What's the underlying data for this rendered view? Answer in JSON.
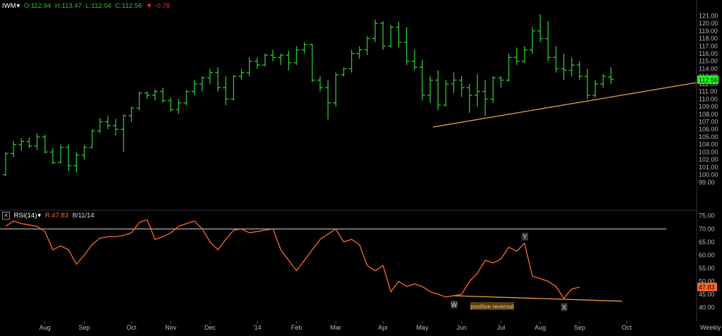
{
  "header": {
    "symbol": "IWM",
    "arrow": "▾",
    "open": "O:112.94",
    "high": "H:113.47",
    "low": "L:112.04",
    "close": "C:112.56",
    "change": "-0.78",
    "change_color": "#ff2a2a"
  },
  "rsi_header": {
    "close_box": "×",
    "label": "RSI(14)",
    "arrow": "▾",
    "value": "R:47.83",
    "date": "8/11/14"
  },
  "colors": {
    "bar": "#2dc52d",
    "rsi": "#ff6a2a",
    "trend": "#e8a040",
    "ref": "#d8d8d8",
    "price_tag": "#22ff22",
    "rsi_tag": "#ff6a2a"
  },
  "chart_data": [
    {
      "type": "ohlc",
      "last_price_tag": "112.56",
      "ylim": [
        98,
        121.5
      ],
      "yticks": [
        "99.00",
        "100.00",
        "101.00",
        "102.00",
        "103.00",
        "104.00",
        "105.00",
        "106.00",
        "107.00",
        "108.00",
        "109.00",
        "110.00",
        "111.00",
        "112.00",
        "113.00",
        "114.00",
        "115.00",
        "116.00",
        "117.00",
        "118.00",
        "119.00",
        "120.00",
        "121.00"
      ],
      "bars": [
        [
          100.0,
          103.0,
          99.8,
          102.8
        ],
        [
          102.8,
          104.5,
          102.3,
          104.0
        ],
        [
          104.0,
          104.8,
          103.2,
          104.4
        ],
        [
          104.4,
          104.9,
          103.5,
          103.8
        ],
        [
          103.8,
          105.5,
          103.3,
          105.0
        ],
        [
          105.0,
          105.3,
          102.8,
          103.0
        ],
        [
          103.0,
          103.5,
          101.4,
          101.6
        ],
        [
          101.6,
          104.0,
          101.5,
          103.6
        ],
        [
          103.6,
          104.0,
          100.5,
          101.2
        ],
        [
          101.2,
          103.0,
          100.3,
          102.6
        ],
        [
          102.6,
          104.0,
          102.0,
          103.6
        ],
        [
          103.6,
          106.0,
          103.5,
          105.8
        ],
        [
          105.8,
          107.5,
          105.5,
          107.0
        ],
        [
          107.0,
          107.8,
          106.0,
          106.5
        ],
        [
          106.5,
          107.4,
          105.2,
          106.0
        ],
        [
          106.0,
          108.0,
          103.0,
          107.8
        ],
        [
          107.8,
          109.0,
          107.0,
          108.8
        ],
        [
          108.8,
          111.0,
          108.5,
          110.8
        ],
        [
          110.8,
          111.0,
          110.0,
          110.5
        ],
        [
          110.5,
          111.3,
          109.8,
          111.0
        ],
        [
          111.0,
          111.5,
          109.5,
          109.8
        ],
        [
          109.8,
          110.2,
          108.3,
          108.6
        ],
        [
          108.6,
          110.0,
          108.0,
          109.5
        ],
        [
          109.5,
          111.2,
          109.2,
          111.0
        ],
        [
          111.0,
          112.5,
          110.5,
          112.0
        ],
        [
          112.0,
          113.0,
          111.0,
          112.8
        ],
        [
          112.8,
          114.0,
          112.0,
          113.5
        ],
        [
          113.5,
          114.2,
          111.0,
          111.5
        ],
        [
          111.5,
          113.0,
          109.2,
          110.0
        ],
        [
          110.0,
          113.2,
          109.8,
          113.0
        ],
        [
          113.0,
          114.0,
          112.5,
          113.5
        ],
        [
          113.5,
          115.5,
          113.0,
          115.0
        ],
        [
          115.0,
          115.5,
          114.0,
          114.5
        ],
        [
          114.5,
          116.0,
          114.3,
          115.8
        ],
        [
          115.8,
          116.5,
          115.0,
          115.5
        ],
        [
          115.5,
          116.0,
          114.5,
          115.8
        ],
        [
          115.8,
          116.4,
          113.8,
          114.8
        ],
        [
          114.8,
          117.0,
          114.5,
          116.5
        ],
        [
          116.5,
          117.5,
          116.0,
          117.2
        ],
        [
          117.2,
          117.3,
          112.2,
          112.5
        ],
        [
          112.5,
          113.0,
          111.0,
          111.5
        ],
        [
          111.5,
          112.5,
          107.3,
          109.5
        ],
        [
          109.5,
          113.5,
          109.0,
          113.2
        ],
        [
          113.2,
          114.2,
          113.0,
          114.0
        ],
        [
          114.0,
          116.5,
          113.5,
          116.0
        ],
        [
          116.0,
          117.0,
          115.3,
          116.5
        ],
        [
          116.5,
          118.3,
          115.8,
          118.0
        ],
        [
          118.0,
          120.5,
          117.5,
          120.0
        ],
        [
          120.0,
          120.3,
          116.5,
          117.0
        ],
        [
          117.0,
          119.8,
          116.8,
          119.5
        ],
        [
          119.5,
          120.2,
          116.8,
          117.5
        ],
        [
          117.5,
          119.5,
          114.5,
          115.0
        ],
        [
          115.0,
          116.5,
          113.8,
          114.2
        ],
        [
          114.2,
          115.2,
          109.8,
          110.5
        ],
        [
          110.5,
          113.0,
          109.5,
          112.5
        ],
        [
          112.5,
          113.8,
          108.5,
          109.2
        ],
        [
          109.2,
          112.5,
          109.0,
          112.0
        ],
        [
          112.0,
          113.5,
          110.8,
          112.5
        ],
        [
          112.5,
          113.0,
          110.3,
          111.5
        ],
        [
          111.5,
          112.0,
          108.2,
          110.5
        ],
        [
          110.5,
          113.3,
          109.0,
          111.0
        ],
        [
          111.0,
          112.5,
          107.8,
          110.0
        ],
        [
          110.0,
          113.0,
          109.5,
          112.8
        ],
        [
          112.8,
          113.0,
          111.5,
          112.5
        ],
        [
          112.5,
          116.0,
          112.3,
          115.5
        ],
        [
          115.5,
          116.8,
          114.5,
          115.0
        ],
        [
          115.0,
          117.0,
          114.8,
          116.5
        ],
        [
          116.5,
          119.5,
          116.0,
          119.0
        ],
        [
          119.0,
          121.2,
          117.5,
          118.0
        ],
        [
          118.0,
          120.3,
          115.0,
          115.5
        ],
        [
          115.5,
          117.0,
          113.5,
          114.0
        ],
        [
          114.0,
          116.0,
          112.5,
          113.8
        ],
        [
          113.8,
          115.5,
          113.0,
          114.5
        ],
        [
          114.5,
          115.0,
          112.5,
          113.0
        ],
        [
          113.0,
          114.0,
          110.0,
          110.5
        ],
        [
          110.5,
          112.5,
          110.2,
          112.0
        ],
        [
          112.0,
          113.3,
          111.5,
          113.0
        ],
        [
          112.9,
          114.2,
          112.0,
          112.6
        ]
      ]
    },
    {
      "type": "line",
      "name": "RSI(14)",
      "ylim": [
        38,
        76
      ],
      "yticks": [
        "40.00",
        "45.00",
        "50.00",
        "55.00",
        "60.00",
        "65.00",
        "70.00",
        "75.00"
      ],
      "reference_line": 70,
      "last_value_tag": "47.83",
      "values": [
        71,
        73,
        72,
        71.5,
        71,
        69,
        62,
        63.5,
        62,
        56.5,
        60,
        64,
        66.5,
        67,
        67,
        67.5,
        68.5,
        72.5,
        73.5,
        66,
        67,
        68.5,
        71,
        72,
        73,
        70,
        65,
        62,
        66,
        69.5,
        70,
        68.5,
        69,
        69.5,
        70,
        62,
        58,
        54,
        58,
        62,
        66,
        68,
        70,
        65,
        66,
        64,
        56,
        54,
        56,
        46,
        50,
        48,
        49,
        48,
        46,
        45,
        44,
        44.5,
        45,
        50,
        53,
        58,
        57,
        58.5,
        63,
        61.5,
        64.5,
        52,
        51,
        50,
        48,
        43.5,
        47,
        47.8
      ],
      "annotations": [
        {
          "text": "W",
          "at_index": 57
        },
        {
          "text": "Y",
          "at_index": 66
        },
        {
          "text": "X",
          "at_index": 71
        },
        {
          "text": "positive reversal"
        }
      ]
    },
    {
      "type": "axis",
      "x_tick_labels": [
        "Aug",
        "Sep",
        "Oct",
        "Nov",
        "Dec",
        "'14",
        "Feb",
        "Mar",
        "Apr",
        "May",
        "Jun",
        "Jul",
        "Aug",
        "Sep",
        "Oct",
        "Weekly"
      ]
    }
  ]
}
